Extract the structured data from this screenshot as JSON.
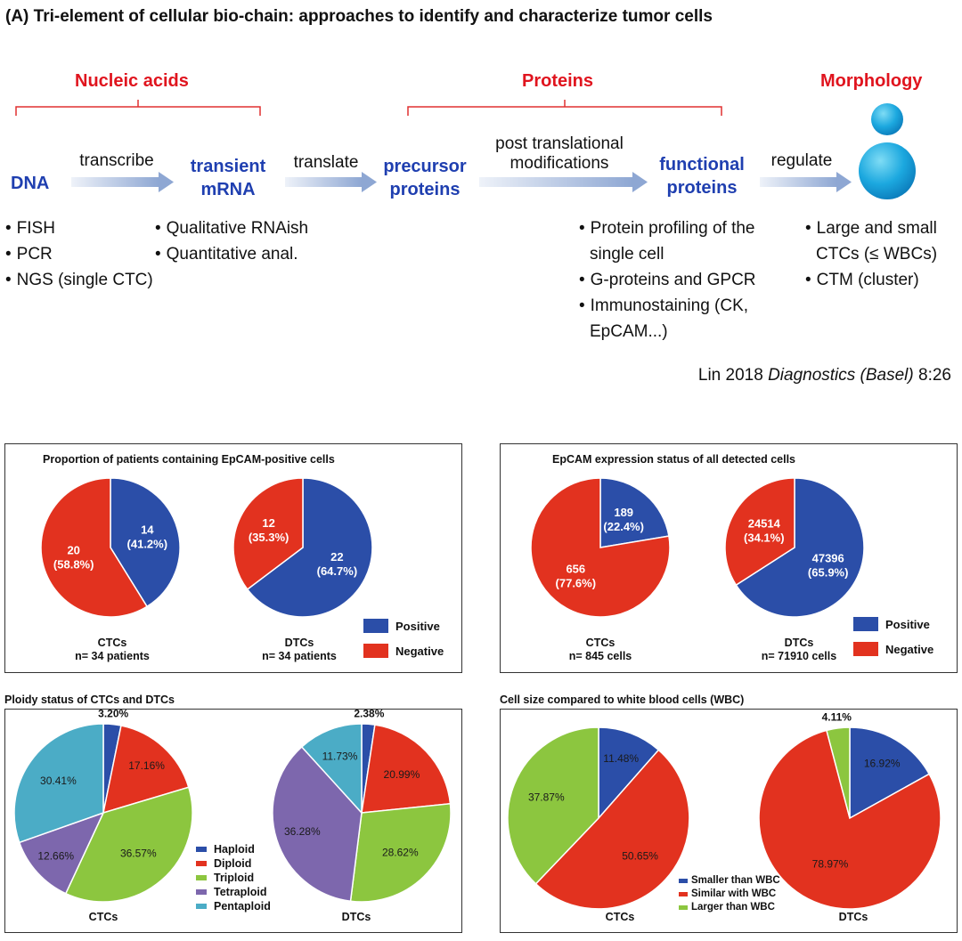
{
  "figure_title": "(A) Tri-element of cellular bio-chain: approaches to identify and characterize tumor cells",
  "flow": {
    "groups": [
      "Nucleic acids",
      "Proteins",
      "Morphology"
    ],
    "nodes": {
      "dna": "DNA",
      "mrna_l1": "transient",
      "mrna_l2": "mRNA",
      "precursor_l1": "precursor",
      "precursor_l2": "proteins",
      "functional_l1": "functional",
      "functional_l2": "proteins"
    },
    "verbs": {
      "transcribe": "transcribe",
      "translate": "translate",
      "ptm_l1": "post translational",
      "ptm_l2": "modifications",
      "regulate": "regulate"
    },
    "lists": {
      "dna": [
        "FISH",
        "PCR",
        "NGS (single CTC)"
      ],
      "mrna": [
        "Qualitative RNAish",
        "Quantitative anal."
      ],
      "proteins": [
        "Protein profiling of the single cell",
        "G-proteins and GPCR",
        "Immunostaining (CK, EpCAM...)"
      ],
      "morphology": [
        "Large and small CTCs (≤ WBCs)",
        "CTM (cluster)"
      ]
    },
    "citation": {
      "pre": "Lin 2018 ",
      "journal": "Diagnostics (Basel)",
      "post": " 8:26"
    }
  },
  "colors": {
    "blue": "#2b4ea8",
    "red": "#e2321f",
    "green": "#8cc63f",
    "purple": "#7d67ad",
    "cyan": "#4bacc6",
    "navy_text": "#1f3fb0",
    "group_red": "#e0141e"
  },
  "chart_data": [
    {
      "type": "pie",
      "title": "Proportion of patients containing EpCAM-positive cells",
      "legend": [
        "Positive",
        "Negative"
      ],
      "pies": [
        {
          "label": "CTCs",
          "sublabel": "n= 34 patients",
          "slices": [
            {
              "name": "Positive",
              "value": 14,
              "percent": "41.2%"
            },
            {
              "name": "Negative",
              "value": 20,
              "percent": "58.8%"
            }
          ]
        },
        {
          "label": "DTCs",
          "sublabel": "n= 34 patients",
          "slices": [
            {
              "name": "Positive",
              "value": 22,
              "percent": "64.7%"
            },
            {
              "name": "Negative",
              "value": 12,
              "percent": "35.3%"
            }
          ]
        }
      ]
    },
    {
      "type": "pie",
      "title": "EpCAM expression status of all detected cells",
      "legend": [
        "Positive",
        "Negative"
      ],
      "pies": [
        {
          "label": "CTCs",
          "sublabel": "n= 845 cells",
          "slices": [
            {
              "name": "Positive",
              "value": 189,
              "percent": "22.4%"
            },
            {
              "name": "Negative",
              "value": 656,
              "percent": "77.6%"
            }
          ]
        },
        {
          "label": "DTCs",
          "sublabel": "n= 71910 cells",
          "slices": [
            {
              "name": "Positive",
              "value": 47396,
              "percent": "65.9%"
            },
            {
              "name": "Negative",
              "value": 24514,
              "percent": "34.1%"
            }
          ]
        }
      ]
    },
    {
      "type": "pie",
      "title": "Ploidy status of CTCs and DTCs",
      "legend": [
        "Haploid",
        "Diploid",
        "Triploid",
        "Tetraploid",
        "Pentaploid"
      ],
      "pies": [
        {
          "label": "CTCs",
          "slices": [
            {
              "name": "Haploid",
              "value": 3.2,
              "percent": "3.20%"
            },
            {
              "name": "Diploid",
              "value": 17.16,
              "percent": "17.16%"
            },
            {
              "name": "Triploid",
              "value": 36.57,
              "percent": "36.57%"
            },
            {
              "name": "Tetraploid",
              "value": 12.66,
              "percent": "12.66%"
            },
            {
              "name": "Pentaploid",
              "value": 30.41,
              "percent": "30.41%"
            }
          ]
        },
        {
          "label": "DTCs",
          "slices": [
            {
              "name": "Haploid",
              "value": 2.38,
              "percent": "2.38%"
            },
            {
              "name": "Diploid",
              "value": 20.99,
              "percent": "20.99%"
            },
            {
              "name": "Triploid",
              "value": 28.62,
              "percent": "28.62%"
            },
            {
              "name": "Tetraploid",
              "value": 36.28,
              "percent": "36.28%"
            },
            {
              "name": "Pentaploid",
              "value": 11.73,
              "percent": "11.73%"
            }
          ]
        }
      ]
    },
    {
      "type": "pie",
      "title": "Cell size compared to white blood cells (WBC)",
      "legend": [
        "Smaller than WBC",
        "Similar with WBC",
        "Larger than WBC"
      ],
      "pies": [
        {
          "label": "CTCs",
          "slices": [
            {
              "name": "Smaller than WBC",
              "value": 11.48,
              "percent": "11.48%"
            },
            {
              "name": "Similar with WBC",
              "value": 50.65,
              "percent": "50.65%"
            },
            {
              "name": "Larger than WBC",
              "value": 37.87,
              "percent": "37.87%"
            }
          ]
        },
        {
          "label": "DTCs",
          "slices": [
            {
              "name": "Smaller than WBC",
              "value": 16.92,
              "percent": "16.92%"
            },
            {
              "name": "Similar with WBC",
              "value": 78.97,
              "percent": "78.97%"
            },
            {
              "name": "Larger than WBC",
              "value": 4.11,
              "percent": "4.11%"
            }
          ]
        }
      ]
    }
  ]
}
